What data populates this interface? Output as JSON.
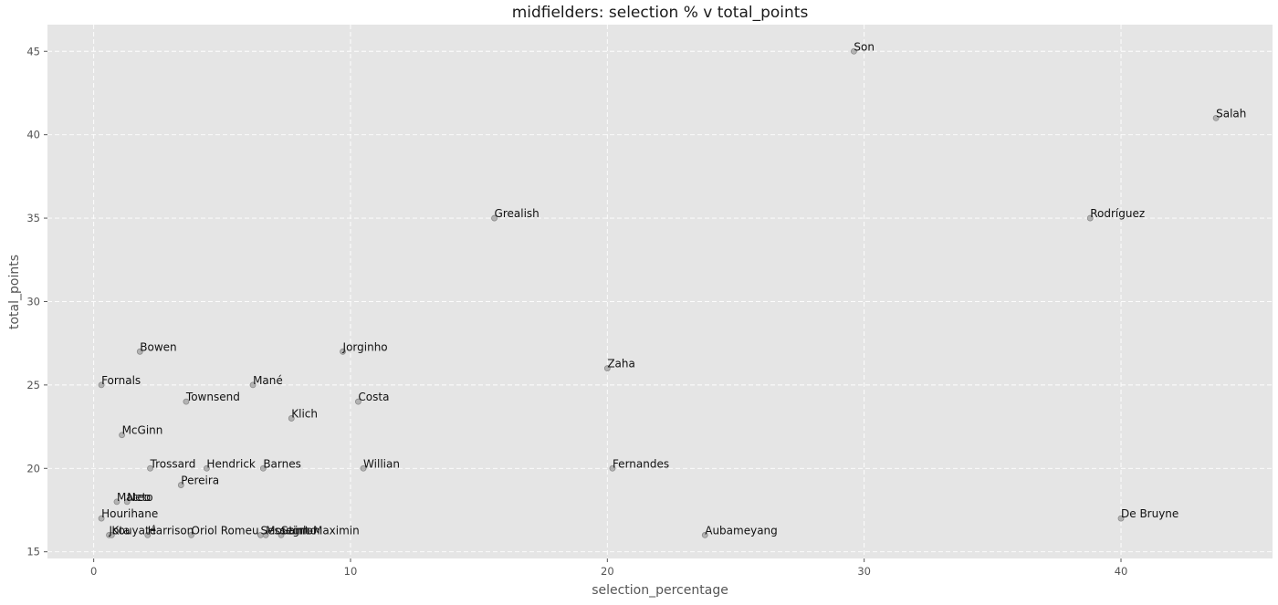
{
  "chart_data": {
    "type": "scatter",
    "title": "midfielders: selection % v total_points",
    "xlabel": "selection_percentage",
    "ylabel": "total_points",
    "xlim": [
      -1.8,
      45.9
    ],
    "ylim": [
      14.6,
      46.6
    ],
    "xticks": [
      0,
      10,
      20,
      30,
      40
    ],
    "yticks": [
      15,
      20,
      25,
      30,
      35,
      40,
      45
    ],
    "grid": true,
    "background": "#e5e5e5",
    "point_color": "#b3b3b3",
    "points": [
      {
        "label": "Son",
        "x": 29.6,
        "y": 45
      },
      {
        "label": "Salah",
        "x": 43.7,
        "y": 41
      },
      {
        "label": "Grealish",
        "x": 15.6,
        "y": 35
      },
      {
        "label": "Rodríguez",
        "x": 38.8,
        "y": 35
      },
      {
        "label": "Bowen",
        "x": 1.8,
        "y": 27
      },
      {
        "label": "Jorginho",
        "x": 9.7,
        "y": 27
      },
      {
        "label": "Zaha",
        "x": 20.0,
        "y": 26
      },
      {
        "label": "Fornals",
        "x": 0.3,
        "y": 25
      },
      {
        "label": "Mané",
        "x": 6.2,
        "y": 25
      },
      {
        "label": "Townsend",
        "x": 3.6,
        "y": 24
      },
      {
        "label": "Costa",
        "x": 10.3,
        "y": 24
      },
      {
        "label": "Klich",
        "x": 7.7,
        "y": 23
      },
      {
        "label": "McGinn",
        "x": 1.1,
        "y": 22
      },
      {
        "label": "Trossard",
        "x": 2.2,
        "y": 20
      },
      {
        "label": "Hendrick",
        "x": 4.4,
        "y": 20
      },
      {
        "label": "Barnes",
        "x": 6.6,
        "y": 20
      },
      {
        "label": "Willian",
        "x": 10.5,
        "y": 20
      },
      {
        "label": "Fernandes",
        "x": 20.2,
        "y": 20
      },
      {
        "label": "Pereira",
        "x": 3.4,
        "y": 19
      },
      {
        "label": "Mateo",
        "x": 0.9,
        "y": 18
      },
      {
        "label": "Neto",
        "x": 1.3,
        "y": 18
      },
      {
        "label": "Hourihane",
        "x": 0.3,
        "y": 17
      },
      {
        "label": "De Bruyne",
        "x": 40.0,
        "y": 17
      },
      {
        "label": "Jota",
        "x": 0.6,
        "y": 16
      },
      {
        "label": "Kouyaté",
        "x": 0.7,
        "y": 16
      },
      {
        "label": "Harrison",
        "x": 2.1,
        "y": 16
      },
      {
        "label": "Oriol Romeu",
        "x": 3.8,
        "y": 16
      },
      {
        "label": "Sessegnon",
        "x": 6.5,
        "y": 16
      },
      {
        "label": "Moutinho",
        "x": 6.7,
        "y": 16
      },
      {
        "label": "Saint-Maximin",
        "x": 7.3,
        "y": 16
      },
      {
        "label": "Aubameyang",
        "x": 23.8,
        "y": 16
      }
    ]
  }
}
